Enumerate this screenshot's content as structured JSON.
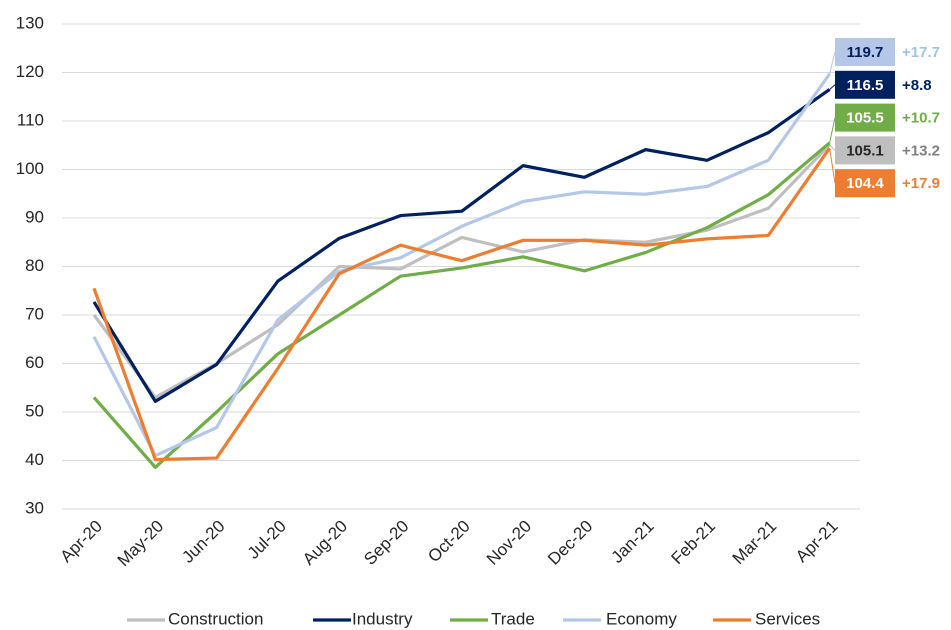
{
  "chart_data": {
    "type": "line",
    "categories": [
      "Apr-20",
      "May-20",
      "Jun-20",
      "Jul-20",
      "Aug-20",
      "Sep-20",
      "Oct-20",
      "Nov-20",
      "Dec-20",
      "Jan-21",
      "Feb-21",
      "Mar-21",
      "Apr-21"
    ],
    "series": [
      {
        "name": "Construction",
        "color": "#bfbfbf",
        "label_color": "#262626",
        "change": "+13.2",
        "change_color": "#808080",
        "values": [
          70,
          53,
          60,
          68,
          80,
          79.5,
          86,
          83,
          85.5,
          85,
          87.5,
          92,
          105.1
        ]
      },
      {
        "name": "Industry",
        "color": "#002060",
        "label_color": "#ffffff",
        "change": "+8.8",
        "change_color": "#002060",
        "values": [
          72.7,
          52.2,
          59.8,
          77,
          85.8,
          90.5,
          91.4,
          100.8,
          98.4,
          104.1,
          101.9,
          107.6,
          116.5
        ]
      },
      {
        "name": "Trade",
        "color": "#70ad47",
        "label_color": "#ffffff",
        "change": "+10.7",
        "change_color": "#70ad47",
        "values": [
          53,
          38.6,
          50,
          62,
          70,
          78,
          79.7,
          82,
          79.1,
          82.9,
          88,
          94.8,
          105.5
        ]
      },
      {
        "name": "Economy",
        "color": "#b4c7e7",
        "label_color": "#002060",
        "change": "+17.7",
        "change_color": "#9dc3e6",
        "values": [
          65.5,
          41,
          46.8,
          69,
          79,
          81.8,
          88.3,
          93.4,
          95.4,
          94.9,
          96.5,
          101.9,
          119.7
        ]
      },
      {
        "name": "Services",
        "color": "#ed7d31",
        "label_color": "#ffffff",
        "change": "+17.9",
        "change_color": "#ed7d31",
        "values": [
          75.5,
          40.2,
          40.5,
          59,
          78.5,
          84.4,
          81.2,
          85.4,
          85.4,
          84.4,
          85.7,
          86.4,
          104.4
        ]
      }
    ],
    "ylim": [
      30,
      130
    ],
    "yticks": [
      30,
      40,
      50,
      60,
      70,
      80,
      90,
      100,
      110,
      120,
      130
    ],
    "grid": true
  }
}
